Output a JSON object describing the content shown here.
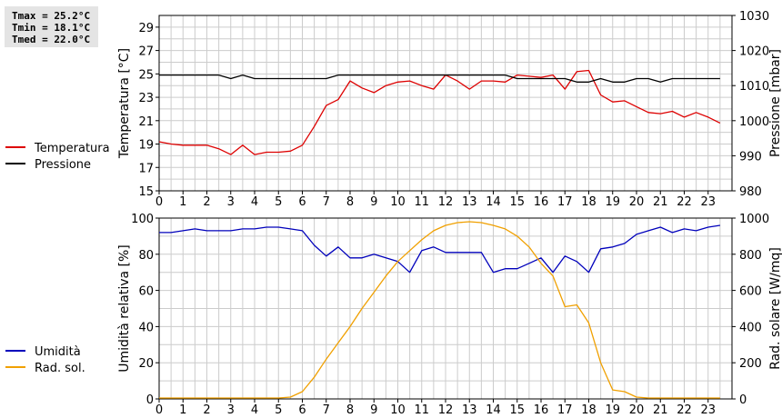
{
  "stats": {
    "tmax": "Tmax = 25.2°C",
    "tmin": "Tmin = 18.1°C",
    "tmed": "Tmed = 22.0°C"
  },
  "colors": {
    "temperature": "#dd0000",
    "pressure": "#000000",
    "humidity": "#0000bb",
    "solar": "#f0a000",
    "grid": "#cccccc"
  },
  "chart_data": [
    {
      "type": "line",
      "title": "",
      "xlabel": "",
      "xlim": [
        0,
        24
      ],
      "x_ticks": [
        "0",
        "1",
        "2",
        "3",
        "4",
        "5",
        "6",
        "7",
        "8",
        "9",
        "10",
        "11",
        "12",
        "13",
        "14",
        "15",
        "16",
        "17",
        "18",
        "19",
        "20",
        "21",
        "22",
        "23"
      ],
      "ylabel": "Temperatura [°C]",
      "ylim": [
        15,
        30
      ],
      "y_ticks": [
        "15",
        "17",
        "19",
        "21",
        "23",
        "25",
        "27",
        "29"
      ],
      "y2label": "Pressione [mbar]",
      "y2lim": [
        980,
        1030
      ],
      "y2_ticks": [
        "980",
        "990",
        "1000",
        "1010",
        "1020",
        "1030"
      ],
      "grid": true,
      "legend_position": "left",
      "x": [
        0,
        0.5,
        1,
        1.5,
        2,
        2.5,
        3,
        3.5,
        4,
        4.5,
        5,
        5.5,
        6,
        6.5,
        7,
        7.5,
        8,
        8.5,
        9,
        9.5,
        10,
        10.5,
        11,
        11.5,
        12,
        12.5,
        13,
        13.5,
        14,
        14.5,
        15,
        15.5,
        16,
        16.5,
        17,
        17.5,
        18,
        18.5,
        19,
        19.5,
        20,
        20.5,
        21,
        21.5,
        22,
        22.5,
        23,
        23.5
      ],
      "series": [
        {
          "name": "Temperatura",
          "axis": "left",
          "values": [
            19.2,
            19.0,
            18.9,
            18.9,
            18.9,
            18.6,
            18.1,
            18.9,
            18.1,
            18.3,
            18.3,
            18.4,
            18.9,
            20.5,
            22.3,
            22.8,
            24.4,
            23.8,
            23.4,
            24.0,
            24.3,
            24.4,
            24.0,
            23.7,
            24.9,
            24.4,
            23.7,
            24.4,
            24.4,
            24.3,
            24.9,
            24.8,
            24.7,
            24.9,
            23.7,
            25.2,
            25.3,
            23.2,
            22.6,
            22.7,
            22.2,
            21.7,
            21.6,
            21.8,
            21.3,
            21.7,
            21.3,
            20.8
          ]
        },
        {
          "name": "Pressione",
          "axis": "right",
          "values": [
            1013,
            1013,
            1013,
            1013,
            1013,
            1013,
            1012,
            1013,
            1012,
            1012,
            1012,
            1012,
            1012,
            1012,
            1012,
            1013,
            1013,
            1013,
            1013,
            1013,
            1013,
            1013,
            1013,
            1013,
            1013,
            1013,
            1013,
            1013,
            1013,
            1013,
            1012,
            1012,
            1012,
            1012,
            1012,
            1011,
            1011,
            1012,
            1011,
            1011,
            1012,
            1012,
            1011,
            1012,
            1012,
            1012,
            1012,
            1012
          ]
        }
      ]
    },
    {
      "type": "line",
      "title": "",
      "xlabel": "",
      "xlim": [
        0,
        24
      ],
      "x_ticks": [
        "0",
        "1",
        "2",
        "3",
        "4",
        "5",
        "6",
        "7",
        "8",
        "9",
        "10",
        "11",
        "12",
        "13",
        "14",
        "15",
        "16",
        "17",
        "18",
        "19",
        "20",
        "21",
        "22",
        "23"
      ],
      "ylabel": "Umidità relativa [%]",
      "ylim": [
        0,
        100
      ],
      "y_ticks": [
        "0",
        "20",
        "40",
        "60",
        "80",
        "100"
      ],
      "y2label": "Rad. solare [W/mq]",
      "y2lim": [
        0,
        1000
      ],
      "y2_ticks": [
        "0",
        "200",
        "400",
        "600",
        "800",
        "1000"
      ],
      "grid": true,
      "legend_position": "left",
      "x": [
        0,
        0.5,
        1,
        1.5,
        2,
        2.5,
        3,
        3.5,
        4,
        4.5,
        5,
        5.5,
        6,
        6.5,
        7,
        7.5,
        8,
        8.5,
        9,
        9.5,
        10,
        10.5,
        11,
        11.5,
        12,
        12.5,
        13,
        13.5,
        14,
        14.5,
        15,
        15.5,
        16,
        16.5,
        17,
        17.5,
        18,
        18.5,
        19,
        19.5,
        20,
        20.5,
        21,
        21.5,
        22,
        22.5,
        23,
        23.5
      ],
      "series": [
        {
          "name": "Umidità",
          "axis": "left",
          "values": [
            92,
            92,
            93,
            94,
            93,
            93,
            93,
            94,
            94,
            95,
            95,
            94,
            93,
            85,
            79,
            84,
            78,
            78,
            80,
            78,
            76,
            70,
            82,
            84,
            81,
            81,
            81,
            81,
            70,
            72,
            72,
            75,
            78,
            70,
            79,
            76,
            70,
            83,
            84,
            86,
            91,
            93,
            95,
            92,
            94,
            93,
            95,
            96
          ]
        },
        {
          "name": "Rad. sol.",
          "axis": "right",
          "values": [
            5,
            5,
            5,
            5,
            5,
            5,
            5,
            5,
            5,
            5,
            5,
            10,
            40,
            120,
            220,
            310,
            400,
            500,
            590,
            680,
            760,
            820,
            880,
            930,
            960,
            975,
            980,
            975,
            960,
            940,
            900,
            840,
            750,
            680,
            510,
            520,
            420,
            200,
            50,
            40,
            10,
            5,
            5,
            5,
            5,
            5,
            5,
            5
          ]
        }
      ]
    }
  ]
}
